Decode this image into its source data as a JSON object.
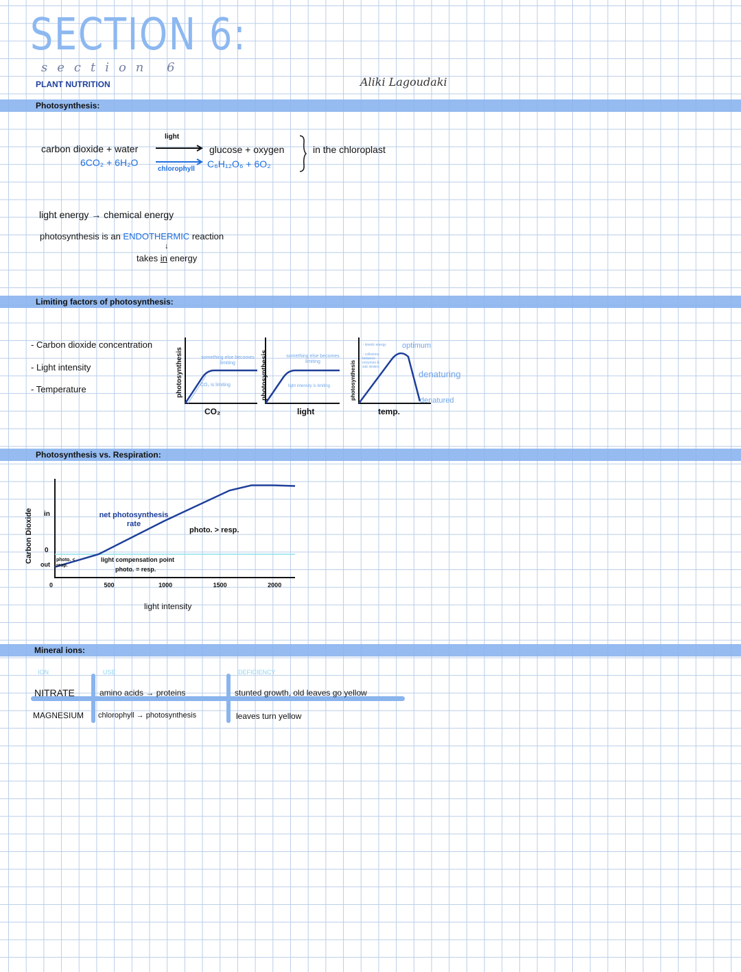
{
  "header": {
    "title": "SECTION 6:",
    "subtitle_script": "section 6",
    "topic": "PLANT NUTRITION",
    "author": "Aliki Lagoudaki"
  },
  "photosynthesis": {
    "heading": "Photosynthesis:",
    "word_equation": {
      "reactants": "carbon dioxide + water",
      "above_arrow": "light",
      "products": "glucose + oxygen"
    },
    "symbol_equation": {
      "reactants": "6CO₂ + 6H₂O",
      "below_arrow": "chlorophyll",
      "products": "C₆H₁₂O₆ + 6O₂"
    },
    "location": "in the chloroplast",
    "energy_line": "light energy → chemical energy",
    "endo_pre": "photosynthesis is an",
    "endo_word": "ENDOTHERMIC",
    "endo_post": "reaction",
    "down_arrow": "↓",
    "takes": "takes",
    "in_word": "in",
    "energy": "energy"
  },
  "limiting": {
    "heading": "Limiting factors of photosynthesis:",
    "factors": [
      "- Carbon dioxide concentration",
      "- Light intensity",
      "- Temperature"
    ],
    "graphs": [
      {
        "ylabel": "photosynthesis",
        "xlabel": "CO₂",
        "top_note": "something else becomes limiting",
        "low_note": "CO₂ is limiting"
      },
      {
        "ylabel": "photosynthesis",
        "xlabel": "light",
        "top_note": "something else becomes limiting",
        "low_note": "light intensity is limiting"
      },
      {
        "ylabel": "photosynthesis",
        "xlabel": "temp.",
        "notes": [
          "↑ kinetic energy",
          "↑ collisions between enzymes & sub strates"
        ],
        "optimum": "optimum",
        "denaturing": "denaturing",
        "denatured": "denatured"
      }
    ]
  },
  "comparison": {
    "heading": "Photosynthesis vs. Respiration:",
    "chart_data": {
      "type": "line",
      "xlabel": "light intensity",
      "ylabel": "Carbon Dioxide",
      "x_ticks": [
        "0",
        "500",
        "1000",
        "1500",
        "2000"
      ],
      "y_ticks": [
        "in",
        "0",
        "out"
      ],
      "xlim": [
        0,
        2200
      ],
      "series": [
        {
          "x": [
            0,
            400,
            1000,
            1600,
            1800,
            2000,
            2200
          ],
          "y": [
            -1,
            0,
            2.6,
            5,
            5.4,
            5.4,
            5.35
          ]
        }
      ],
      "annotations": [
        "net photosynthesis rate",
        "photo. > resp.",
        "photo. < resp.",
        "light compensation point",
        "photo. = resp."
      ]
    }
  },
  "minerals": {
    "heading": "Mineral ions:",
    "columns": [
      "ION",
      "USE",
      "DEFICIENCY"
    ],
    "rows": [
      [
        "NITRATE",
        "amino acids → proteins",
        "stunted growth, old leaves go yellow"
      ],
      [
        "MAGNESIUM",
        "chlorophyll → photosynthesis",
        "leaves turn yellow"
      ]
    ]
  },
  "colors": {
    "band": "#8ab4ee",
    "accent": "#1f6fdc",
    "navy": "#1e3f9a",
    "light": "#6fa6ea",
    "zero_line": "#8fe0ea"
  }
}
